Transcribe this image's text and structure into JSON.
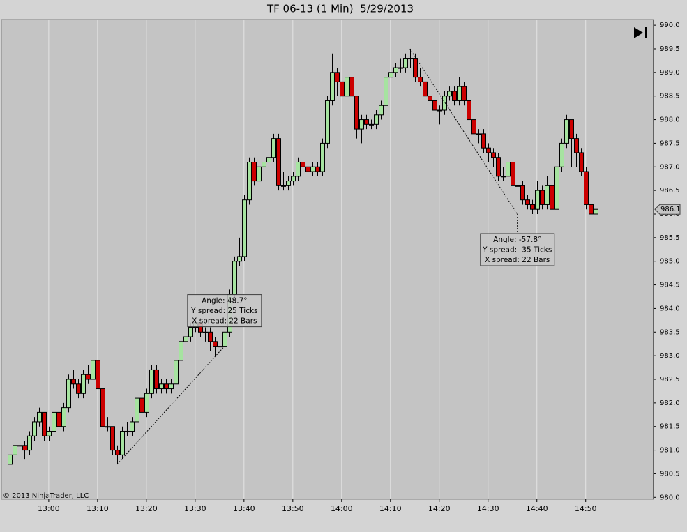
{
  "chart_data": {
    "type": "candlestick",
    "title": "TF 06-13 (1 Min)  5/29/2013",
    "x": [
      772,
      773,
      774,
      775,
      776,
      777,
      778,
      779,
      780,
      781,
      782,
      783,
      784,
      785,
      786,
      787,
      788,
      789,
      790,
      791,
      792,
      793,
      794,
      795,
      796,
      797,
      798,
      799,
      800,
      801,
      802,
      803,
      804,
      805,
      806,
      807,
      808,
      809,
      810,
      811,
      812,
      813,
      814,
      815,
      816,
      817,
      818,
      819,
      820,
      821,
      822,
      823,
      824,
      825,
      826,
      827,
      828,
      829,
      830,
      831,
      832,
      833,
      834,
      835,
      836,
      837,
      838,
      839,
      840,
      841,
      842,
      843,
      844,
      845,
      846,
      847,
      848,
      849,
      850,
      851,
      852,
      853,
      854,
      855,
      856,
      857,
      858,
      859,
      860,
      861,
      862,
      863,
      864,
      865,
      866,
      867,
      868,
      869,
      870,
      871,
      872,
      873,
      874,
      875,
      876,
      877,
      878,
      879,
      880,
      881,
      882,
      883,
      884,
      885,
      886,
      887,
      888,
      889,
      890,
      891,
      892
    ],
    "open": [
      980.7,
      980.9,
      981.1,
      981.1,
      981.0,
      981.3,
      981.6,
      981.8,
      981.3,
      981.4,
      981.8,
      981.5,
      981.9,
      982.5,
      982.4,
      982.2,
      982.6,
      982.5,
      982.9,
      982.3,
      981.5,
      981.5,
      981.0,
      980.9,
      981.4,
      981.4,
      981.6,
      982.1,
      981.8,
      982.2,
      982.7,
      982.3,
      982.4,
      982.3,
      982.4,
      982.9,
      983.3,
      983.4,
      983.6,
      983.7,
      983.5,
      983.5,
      983.3,
      983.2,
      983.2,
      983.5,
      984.3,
      985.0,
      985.1,
      986.3,
      987.1,
      986.7,
      987.0,
      987.1,
      987.2,
      987.6,
      986.6,
      986.6,
      986.7,
      986.8,
      987.1,
      987.0,
      986.9,
      987.0,
      986.9,
      987.5,
      988.4,
      989.0,
      988.8,
      988.5,
      988.9,
      988.5,
      987.8,
      988.0,
      987.9,
      987.9,
      988.1,
      988.3,
      988.9,
      989.0,
      989.1,
      989.1,
      989.3,
      989.3,
      988.9,
      988.8,
      988.5,
      988.4,
      988.2,
      988.2,
      988.5,
      988.6,
      988.4,
      988.7,
      988.4,
      988.0,
      987.7,
      987.7,
      987.4,
      987.3,
      987.2,
      986.8,
      986.8,
      987.1,
      986.6,
      986.6,
      986.3,
      986.2,
      986.1,
      986.5,
      986.2,
      986.6,
      986.1,
      987.0,
      987.5,
      988.0,
      987.6,
      987.3,
      986.9,
      986.2,
      986.0
    ],
    "high": [
      981.0,
      981.2,
      981.2,
      981.2,
      981.4,
      981.7,
      981.9,
      981.8,
      981.5,
      981.9,
      981.9,
      982.0,
      982.6,
      982.7,
      982.5,
      982.7,
      982.8,
      983.0,
      982.9,
      982.3,
      981.7,
      981.5,
      981.1,
      981.5,
      981.6,
      981.7,
      982.1,
      982.1,
      982.3,
      982.8,
      982.8,
      982.5,
      982.5,
      982.5,
      983.0,
      983.4,
      983.5,
      983.7,
      983.8,
      983.8,
      983.6,
      983.6,
      983.4,
      983.3,
      983.6,
      984.4,
      985.1,
      985.5,
      986.4,
      987.2,
      987.2,
      987.1,
      987.3,
      987.3,
      987.7,
      987.7,
      986.9,
      986.8,
      986.9,
      987.2,
      987.2,
      987.1,
      987.1,
      987.1,
      987.6,
      988.5,
      989.4,
      989.1,
      989.2,
      989.0,
      988.9,
      988.5,
      988.1,
      988.1,
      988.0,
      988.2,
      988.4,
      989.0,
      989.1,
      989.2,
      989.3,
      989.4,
      989.5,
      989.4,
      989.1,
      988.9,
      988.6,
      988.5,
      988.3,
      988.6,
      988.7,
      988.7,
      988.9,
      988.8,
      988.5,
      988.1,
      987.8,
      987.8,
      987.5,
      987.4,
      987.3,
      987.0,
      987.2,
      987.1,
      986.7,
      986.7,
      986.4,
      986.3,
      986.7,
      986.6,
      986.8,
      986.7,
      987.1,
      987.6,
      988.1,
      988.0,
      987.7,
      987.4,
      987.0,
      986.3,
      986.3
    ],
    "low": [
      980.6,
      980.8,
      980.9,
      980.8,
      980.9,
      981.2,
      981.5,
      981.2,
      981.2,
      981.3,
      981.4,
      981.4,
      981.8,
      982.3,
      982.1,
      982.1,
      982.4,
      982.4,
      982.2,
      981.4,
      981.4,
      980.9,
      980.7,
      980.8,
      981.3,
      981.3,
      981.5,
      981.7,
      981.7,
      982.1,
      982.2,
      982.2,
      982.2,
      982.2,
      982.3,
      982.8,
      983.2,
      983.3,
      983.5,
      983.4,
      983.3,
      983.1,
      983.0,
      983.1,
      983.1,
      983.4,
      984.2,
      984.9,
      985.0,
      986.2,
      986.6,
      986.6,
      986.9,
      987.0,
      987.1,
      986.5,
      986.5,
      986.5,
      986.6,
      986.7,
      986.9,
      986.8,
      986.8,
      986.8,
      986.8,
      987.4,
      988.3,
      988.5,
      988.4,
      988.4,
      988.3,
      987.6,
      987.5,
      987.8,
      987.8,
      987.8,
      988.0,
      988.2,
      988.8,
      988.9,
      989.0,
      989.0,
      989.1,
      988.8,
      988.7,
      988.4,
      988.2,
      988.0,
      987.9,
      988.1,
      988.4,
      988.3,
      988.3,
      988.3,
      987.9,
      987.6,
      987.5,
      987.3,
      987.1,
      987.0,
      986.7,
      986.7,
      986.7,
      986.5,
      986.4,
      986.2,
      986.1,
      986.0,
      986.0,
      986.1,
      986.1,
      986.0,
      986.0,
      986.9,
      987.4,
      987.0,
      987.0,
      986.8,
      986.1,
      985.8,
      985.8
    ],
    "close": [
      980.9,
      981.1,
      981.1,
      981.0,
      981.3,
      981.6,
      981.8,
      981.3,
      981.4,
      981.8,
      981.5,
      981.9,
      982.5,
      982.4,
      982.2,
      982.6,
      982.5,
      982.9,
      982.3,
      981.5,
      981.5,
      981.0,
      980.9,
      981.4,
      981.4,
      981.6,
      982.1,
      981.8,
      982.2,
      982.7,
      982.3,
      982.4,
      982.3,
      982.4,
      982.9,
      983.3,
      983.4,
      983.6,
      983.7,
      983.5,
      983.5,
      983.3,
      983.2,
      983.2,
      983.5,
      984.3,
      985.0,
      985.1,
      986.3,
      987.1,
      986.7,
      987.0,
      987.1,
      987.2,
      987.6,
      986.6,
      986.6,
      986.7,
      986.8,
      987.1,
      987.0,
      986.9,
      987.0,
      986.9,
      987.5,
      988.4,
      989.0,
      988.8,
      988.5,
      988.9,
      988.5,
      987.8,
      988.0,
      987.9,
      987.9,
      988.1,
      988.3,
      988.9,
      989.0,
      989.1,
      989.1,
      989.3,
      989.3,
      988.9,
      988.8,
      988.5,
      988.4,
      988.2,
      988.2,
      988.5,
      988.6,
      988.4,
      988.7,
      988.4,
      988.0,
      987.7,
      987.7,
      987.4,
      987.3,
      987.2,
      986.8,
      986.8,
      987.1,
      986.6,
      986.6,
      986.3,
      986.2,
      986.1,
      986.5,
      986.2,
      986.6,
      986.1,
      987.0,
      987.5,
      988.0,
      987.6,
      987.3,
      986.9,
      986.2,
      986.0,
      986.1
    ],
    "up_color": "#a6e3a0",
    "down_color": "#cc0000",
    "xlim": [
      770.3,
      903.9
    ],
    "ylim": [
      979.96,
      990.12
    ],
    "xticks": [
      {
        "value": 780,
        "label": "13:00"
      },
      {
        "value": 790,
        "label": "13:10"
      },
      {
        "value": 800,
        "label": "13:20"
      },
      {
        "value": 810,
        "label": "13:30"
      },
      {
        "value": 820,
        "label": "13:40"
      },
      {
        "value": 830,
        "label": "13:50"
      },
      {
        "value": 840,
        "label": "14:00"
      },
      {
        "value": 850,
        "label": "14:10"
      },
      {
        "value": 860,
        "label": "14:20"
      },
      {
        "value": 870,
        "label": "14:30"
      },
      {
        "value": 880,
        "label": "14:40"
      },
      {
        "value": 890,
        "label": "14:50"
      }
    ],
    "yticks": [
      {
        "value": 980.0,
        "label": "980.0"
      },
      {
        "value": 980.5,
        "label": "980.5"
      },
      {
        "value": 981.0,
        "label": "981.0"
      },
      {
        "value": 981.5,
        "label": "981.5"
      },
      {
        "value": 982.0,
        "label": "982.0"
      },
      {
        "value": 982.5,
        "label": "982.5"
      },
      {
        "value": 983.0,
        "label": "983.0"
      },
      {
        "value": 983.5,
        "label": "983.5"
      },
      {
        "value": 984.0,
        "label": "984.0"
      },
      {
        "value": 984.5,
        "label": "984.5"
      },
      {
        "value": 985.0,
        "label": "985.0"
      },
      {
        "value": 985.5,
        "label": "985.5"
      },
      {
        "value": 986.0,
        "label": "986.0"
      },
      {
        "value": 986.5,
        "label": "986.5"
      },
      {
        "value": 987.0,
        "label": "987.0"
      },
      {
        "value": 987.5,
        "label": "987.5"
      },
      {
        "value": 988.0,
        "label": "988.0"
      },
      {
        "value": 988.5,
        "label": "988.5"
      },
      {
        "value": 989.0,
        "label": "989.0"
      },
      {
        "value": 989.5,
        "label": "989.5"
      },
      {
        "value": 990.0,
        "label": "990.0"
      }
    ],
    "grid": "x",
    "last_price": 986.1,
    "annotations": [
      {
        "lines": [
          "Angle: 48.7°",
          "Y spread: 25 Ticks",
          "X spread: 22 Bars"
        ],
        "start": {
          "x": 794,
          "y": 980.7
        },
        "end": {
          "x": 816,
          "y": 983.2
        }
      },
      {
        "lines": [
          "Angle: -57.8°",
          "Y spread: -35 Ticks",
          "X spread: 22 Bars"
        ],
        "start": {
          "x": 854,
          "y": 989.5
        },
        "end": {
          "x": 876,
          "y": 986.0
        }
      }
    ]
  },
  "copyright": "© 2013 NinjaTrader, LLC"
}
